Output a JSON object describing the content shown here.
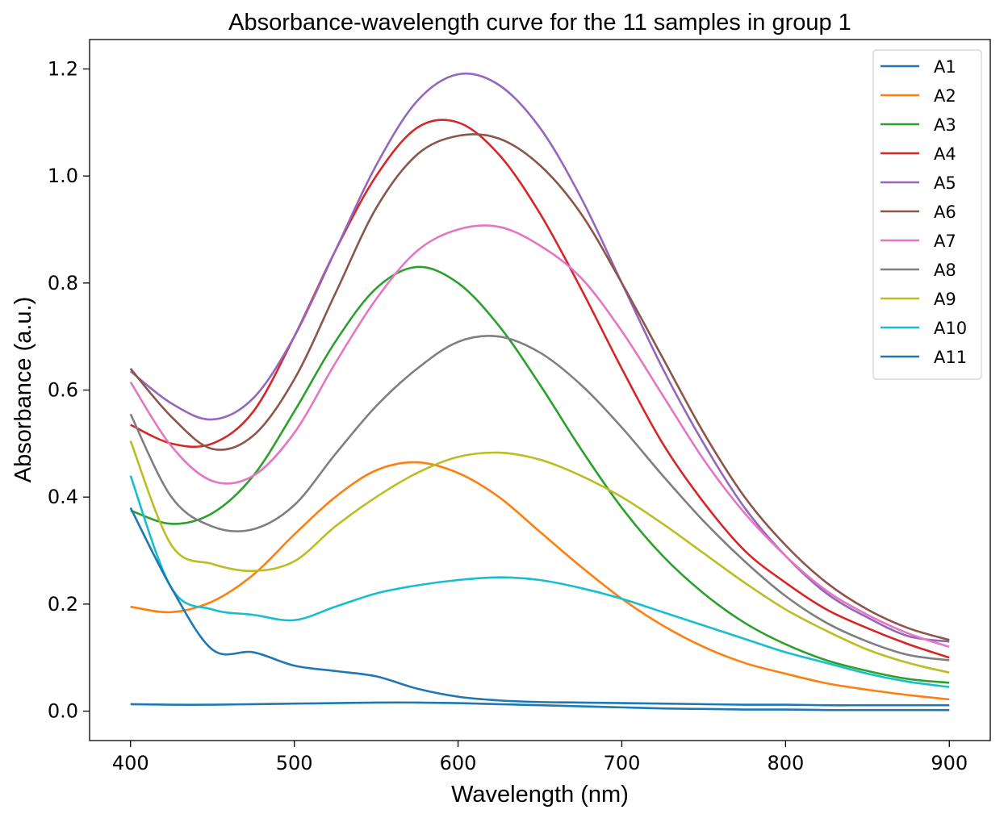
{
  "chart_data": {
    "type": "line",
    "title": "Absorbance-wavelength curve for the 11 samples in group 1",
    "xlabel": "Wavelength (nm)",
    "ylabel": "Absorbance (a.u.)",
    "xlim": [
      375,
      925
    ],
    "ylim": [
      -0.055,
      1.255
    ],
    "x_ticks": [
      400,
      500,
      600,
      700,
      800,
      900
    ],
    "x_tick_labels": [
      "400",
      "500",
      "600",
      "700",
      "800",
      "900"
    ],
    "y_ticks": [
      0.0,
      0.2,
      0.4,
      0.6,
      0.8,
      1.0,
      1.2
    ],
    "y_tick_labels": [
      "0.0",
      "0.2",
      "0.4",
      "0.6",
      "0.8",
      "1.0",
      "1.2"
    ],
    "grid": false,
    "legend_position": "top-right",
    "x": [
      400,
      425,
      450,
      475,
      500,
      525,
      550,
      575,
      600,
      625,
      650,
      675,
      700,
      725,
      750,
      775,
      800,
      825,
      850,
      875,
      900
    ],
    "series": [
      {
        "name": "A1",
        "color": "#1f77b4",
        "values": [
          0.013,
          0.012,
          0.012,
          0.013,
          0.014,
          0.015,
          0.016,
          0.016,
          0.015,
          0.013,
          0.011,
          0.009,
          0.007,
          0.005,
          0.004,
          0.003,
          0.003,
          0.002,
          0.002,
          0.002,
          0.002
        ]
      },
      {
        "name": "A2",
        "color": "#ff7f0e",
        "values": [
          0.195,
          0.185,
          0.205,
          0.255,
          0.33,
          0.4,
          0.45,
          0.465,
          0.445,
          0.4,
          0.335,
          0.27,
          0.21,
          0.16,
          0.12,
          0.09,
          0.07,
          0.052,
          0.04,
          0.03,
          0.022
        ]
      },
      {
        "name": "A3",
        "color": "#2ca02c",
        "values": [
          0.375,
          0.35,
          0.37,
          0.44,
          0.56,
          0.69,
          0.79,
          0.83,
          0.8,
          0.72,
          0.61,
          0.49,
          0.38,
          0.29,
          0.22,
          0.165,
          0.125,
          0.095,
          0.075,
          0.06,
          0.053
        ]
      },
      {
        "name": "A4",
        "color": "#d62728",
        "values": [
          0.535,
          0.5,
          0.5,
          0.56,
          0.7,
          0.86,
          1.0,
          1.09,
          1.1,
          1.04,
          0.93,
          0.79,
          0.64,
          0.5,
          0.39,
          0.3,
          0.24,
          0.19,
          0.155,
          0.125,
          0.1
        ]
      },
      {
        "name": "A5",
        "color": "#9467bd",
        "values": [
          0.635,
          0.575,
          0.545,
          0.585,
          0.7,
          0.86,
          1.02,
          1.14,
          1.19,
          1.17,
          1.09,
          0.96,
          0.8,
          0.64,
          0.5,
          0.38,
          0.29,
          0.22,
          0.175,
          0.14,
          0.13
        ]
      },
      {
        "name": "A6",
        "color": "#8c564b",
        "values": [
          0.64,
          0.55,
          0.49,
          0.515,
          0.62,
          0.78,
          0.94,
          1.04,
          1.075,
          1.07,
          1.02,
          0.93,
          0.8,
          0.66,
          0.52,
          0.4,
          0.31,
          0.24,
          0.19,
          0.155,
          0.133
        ]
      },
      {
        "name": "A7",
        "color": "#e377c2",
        "values": [
          0.615,
          0.495,
          0.43,
          0.44,
          0.52,
          0.65,
          0.77,
          0.86,
          0.9,
          0.905,
          0.87,
          0.81,
          0.71,
          0.59,
          0.47,
          0.37,
          0.29,
          0.225,
          0.18,
          0.145,
          0.12
        ]
      },
      {
        "name": "A8",
        "color": "#7f7f7f",
        "values": [
          0.555,
          0.4,
          0.345,
          0.34,
          0.385,
          0.48,
          0.57,
          0.64,
          0.69,
          0.7,
          0.67,
          0.61,
          0.53,
          0.44,
          0.355,
          0.28,
          0.215,
          0.165,
          0.13,
          0.105,
          0.095
        ]
      },
      {
        "name": "A9",
        "color": "#bcbd22",
        "values": [
          0.505,
          0.31,
          0.275,
          0.262,
          0.28,
          0.345,
          0.4,
          0.445,
          0.475,
          0.483,
          0.47,
          0.44,
          0.4,
          0.35,
          0.295,
          0.24,
          0.19,
          0.15,
          0.115,
          0.09,
          0.072
        ]
      },
      {
        "name": "A10",
        "color": "#17becf",
        "values": [
          0.44,
          0.23,
          0.19,
          0.18,
          0.17,
          0.195,
          0.22,
          0.235,
          0.245,
          0.25,
          0.245,
          0.23,
          0.21,
          0.185,
          0.16,
          0.135,
          0.11,
          0.09,
          0.07,
          0.055,
          0.045
        ]
      },
      {
        "name": "A11",
        "color": "#1f77b4",
        "values": [
          0.38,
          0.23,
          0.115,
          0.11,
          0.085,
          0.075,
          0.065,
          0.042,
          0.027,
          0.02,
          0.017,
          0.016,
          0.015,
          0.014,
          0.013,
          0.012,
          0.012,
          0.011,
          0.011,
          0.011,
          0.011
        ]
      }
    ]
  }
}
